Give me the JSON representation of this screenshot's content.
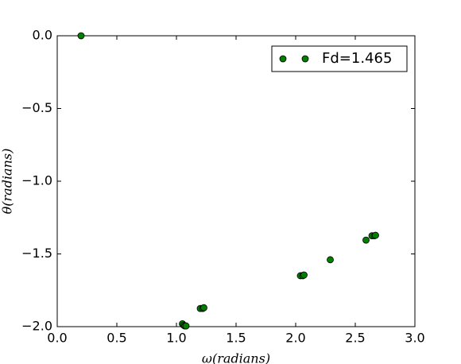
{
  "chart_data": {
    "type": "scatter",
    "x_label": "ω(radians)",
    "y_label": "θ(radians)",
    "x": [
      0.2,
      1.05,
      1.06,
      1.07,
      1.08,
      1.2,
      1.22,
      1.23,
      2.04,
      2.06,
      2.07,
      2.29,
      2.59,
      2.64,
      2.66,
      2.67
    ],
    "series": [
      {
        "name": "Fd=1.465",
        "color": "#007f00",
        "values": [
          0.0,
          -1.98,
          -1.99,
          -1.995,
          -1.995,
          -1.875,
          -1.875,
          -1.87,
          -1.65,
          -1.65,
          -1.645,
          -1.54,
          -1.405,
          -1.375,
          -1.375,
          -1.372
        ]
      }
    ],
    "xlim": [
      0,
      3
    ],
    "ylim": [
      -2,
      0
    ],
    "xticks": [
      {
        "value": 0,
        "label": "0.0"
      },
      {
        "value": 0.5,
        "label": "0.5"
      },
      {
        "value": 1,
        "label": "1.0"
      },
      {
        "value": 1.5,
        "label": "1.5"
      },
      {
        "value": 2,
        "label": "2.0"
      },
      {
        "value": 2.5,
        "label": "2.5"
      },
      {
        "value": 3,
        "label": "3.0"
      }
    ],
    "yticks": [
      {
        "value": 0,
        "label": "0.0"
      },
      {
        "value": -0.5,
        "label": "−0.5"
      },
      {
        "value": -1,
        "label": "−1.0"
      },
      {
        "value": -1.5,
        "label": "−1.5"
      },
      {
        "value": -2,
        "label": "−2.0"
      }
    ],
    "legend": "upper right",
    "grid": false
  }
}
